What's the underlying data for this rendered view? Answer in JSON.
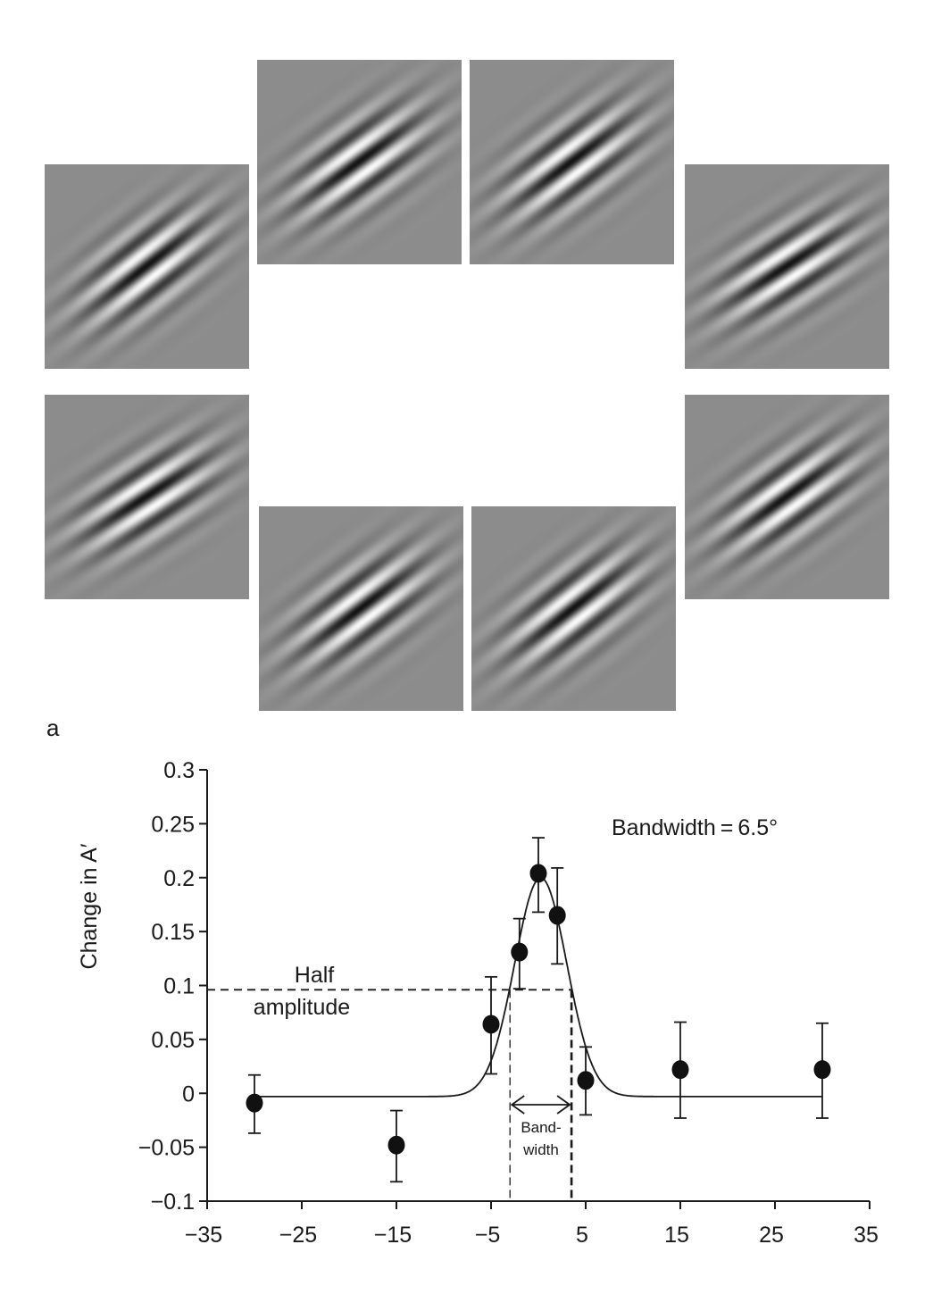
{
  "panel_label": "a",
  "stimuli": {
    "background": "#8c8c8c",
    "patches": [
      {
        "id": "left-upper",
        "orientation_deg": 38
      },
      {
        "id": "top-left",
        "orientation_deg": 36
      },
      {
        "id": "top-right",
        "orientation_deg": 37
      },
      {
        "id": "right-upper",
        "orientation_deg": 33
      },
      {
        "id": "left-lower",
        "orientation_deg": 33
      },
      {
        "id": "bottom-left",
        "orientation_deg": 37
      },
      {
        "id": "bottom-right",
        "orientation_deg": 38
      },
      {
        "id": "right-lower",
        "orientation_deg": 36
      }
    ]
  },
  "chart_data": {
    "type": "scatter",
    "title": "",
    "xlabel": "",
    "ylabel": "Change in A′",
    "xlim": [
      -35,
      35
    ],
    "ylim": [
      -0.1,
      0.3
    ],
    "xticks": [
      -35,
      -25,
      -15,
      -5,
      5,
      15,
      25,
      35
    ],
    "xtick_labels": [
      "−35",
      "−25",
      "−15",
      "−5",
      "5",
      "15",
      "25",
      "35"
    ],
    "yticks": [
      0.3,
      0.25,
      0.2,
      0.15,
      0.1,
      0.05,
      0,
      -0.05,
      -0.1
    ],
    "ytick_labels": [
      "0.3",
      "0.25",
      "0.2",
      "0.15",
      "0.1",
      "0.05",
      "0",
      "−0.05",
      "−0.1"
    ],
    "grid": false,
    "points": [
      {
        "x": -30,
        "y": -0.009,
        "err_hi": 0.017,
        "err_lo": -0.037
      },
      {
        "x": -15,
        "y": -0.048,
        "err_hi": -0.016,
        "err_lo": -0.082
      },
      {
        "x": -5,
        "y": 0.064,
        "err_hi": 0.108,
        "err_lo": 0.018
      },
      {
        "x": -2,
        "y": 0.131,
        "err_hi": 0.162,
        "err_lo": 0.097
      },
      {
        "x": 0,
        "y": 0.204,
        "err_hi": 0.237,
        "err_lo": 0.168
      },
      {
        "x": 2,
        "y": 0.165,
        "err_hi": 0.209,
        "err_lo": 0.12
      },
      {
        "x": 5,
        "y": 0.012,
        "err_hi": 0.043,
        "err_lo": -0.02
      },
      {
        "x": 15,
        "y": 0.022,
        "err_hi": 0.066,
        "err_lo": -0.023
      },
      {
        "x": 30,
        "y": 0.022,
        "err_hi": 0.065,
        "err_lo": -0.023
      }
    ],
    "fit": {
      "type": "gaussian",
      "baseline": -0.003,
      "peak": 0.2,
      "center": 0.25,
      "fwhm": 6.5,
      "x_range": [
        -30,
        30
      ]
    },
    "half_amplitude": {
      "y": 0.096,
      "x_left": -3.0,
      "x_right": 3.5
    },
    "annotations": {
      "bandwidth": "Bandwidth = 6.5°",
      "half_line1": "Half",
      "half_line2": "amplitude",
      "band_line1": "Band-",
      "band_line2": "width"
    }
  }
}
